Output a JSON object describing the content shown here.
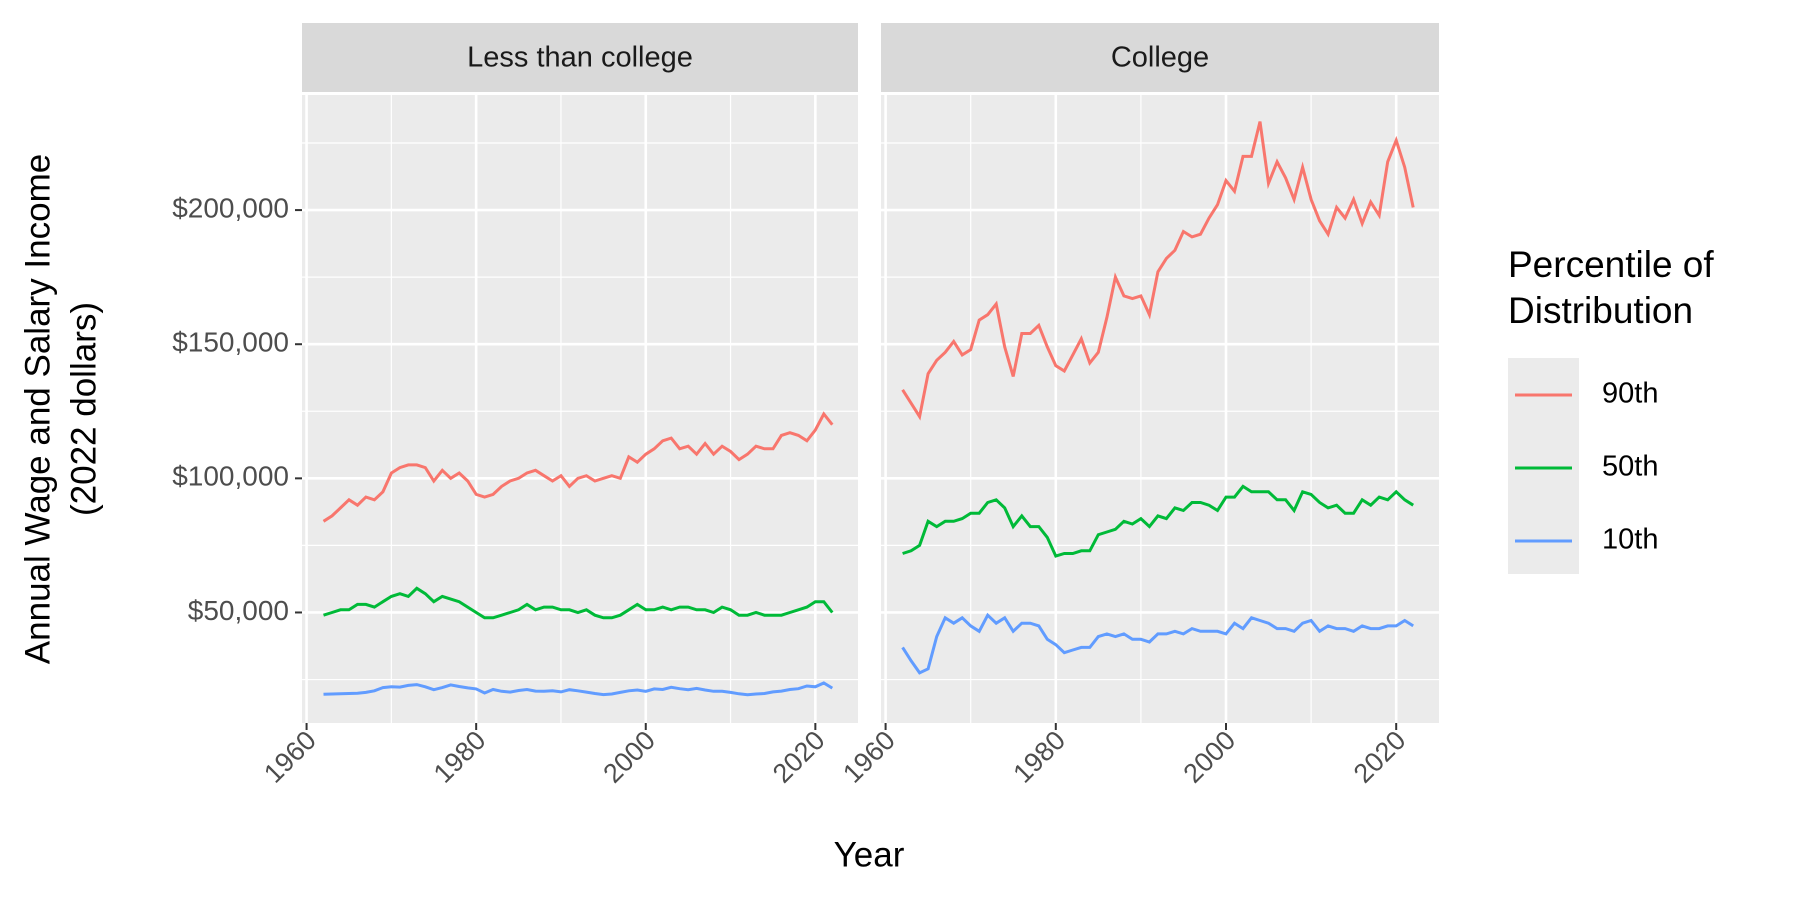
{
  "chart_data": {
    "type": "line",
    "y_title": [
      "Annual Wage and Salary Income",
      "(2022 dollars)"
    ],
    "x_title": "Year",
    "legend_title": [
      "Percentile of",
      "Distribution"
    ],
    "grid": true,
    "xlim": [
      1959.46,
      2025.03
    ],
    "xticks": [
      1960,
      1980,
      2000,
      2020
    ],
    "x_minor_ticks": [
      1970,
      1990,
      2010
    ],
    "ylim": [
      8800,
      242900
    ],
    "yticks": [
      {
        "value": 50000,
        "label": "$50,000"
      },
      {
        "value": 100000,
        "label": "$100,000"
      },
      {
        "value": 150000,
        "label": "$150,000"
      },
      {
        "value": 200000,
        "label": "$200,000"
      }
    ],
    "y_minor_ticks": [
      25000,
      75000,
      125000,
      175000,
      225000
    ],
    "x": [
      1962,
      1963,
      1964,
      1965,
      1966,
      1967,
      1968,
      1969,
      1970,
      1971,
      1972,
      1973,
      1974,
      1975,
      1976,
      1977,
      1978,
      1979,
      1980,
      1981,
      1982,
      1983,
      1984,
      1985,
      1986,
      1987,
      1988,
      1989,
      1990,
      1991,
      1992,
      1993,
      1994,
      1995,
      1996,
      1997,
      1998,
      1999,
      2000,
      2001,
      2002,
      2003,
      2004,
      2005,
      2006,
      2007,
      2008,
      2009,
      2010,
      2011,
      2012,
      2013,
      2014,
      2015,
      2016,
      2017,
      2018,
      2019,
      2020,
      2021,
      2022
    ],
    "facets": [
      {
        "title": "Less than college",
        "series": [
          {
            "name": "90th",
            "color": "#F8766D",
            "values": [
              84000,
              86000,
              89000,
              92000,
              90000,
              93000,
              92000,
              95000,
              102000,
              104000,
              105000,
              105000,
              104000,
              99000,
              103000,
              100000,
              102000,
              99000,
              94000,
              93000,
              94000,
              97000,
              99000,
              100000,
              102000,
              103000,
              101000,
              99000,
              101000,
              97000,
              100000,
              101000,
              99000,
              100000,
              101000,
              100000,
              108000,
              106000,
              109000,
              111000,
              114000,
              115000,
              111000,
              112000,
              109000,
              113000,
              109000,
              112000,
              110000,
              107000,
              109000,
              112000,
              111000,
              111000,
              116000,
              117000,
              116000,
              114000,
              118000,
              124000,
              120000
            ]
          },
          {
            "name": "50th",
            "color": "#00BA38",
            "values": [
              49000,
              50000,
              51000,
              51000,
              53000,
              53000,
              52000,
              54000,
              56000,
              57000,
              56000,
              59000,
              57000,
              54000,
              56000,
              55000,
              54000,
              52000,
              50000,
              48000,
              48000,
              49000,
              50000,
              51000,
              53000,
              51000,
              52000,
              52000,
              51000,
              51000,
              50000,
              51000,
              49000,
              48000,
              48000,
              49000,
              51000,
              53000,
              51000,
              51000,
              52000,
              51000,
              52000,
              52000,
              51000,
              51000,
              50000,
              52000,
              51000,
              49000,
              49000,
              50000,
              49000,
              49000,
              49000,
              50000,
              51000,
              52000,
              54000,
              54000,
              50000
            ]
          },
          {
            "name": "10th",
            "color": "#619CFF",
            "values": [
              19500,
              19600,
              19700,
              19800,
              19900,
              20200,
              20800,
              22000,
              22300,
              22200,
              22800,
              23100,
              22300,
              21200,
              22000,
              23000,
              22400,
              21900,
              21500,
              20000,
              21300,
              20600,
              20300,
              20900,
              21300,
              20700,
              20600,
              20800,
              20400,
              21200,
              20800,
              20300,
              19800,
              19400,
              19600,
              20200,
              20800,
              21100,
              20600,
              21500,
              21300,
              22100,
              21600,
              21200,
              21700,
              21100,
              20600,
              20600,
              20200,
              19700,
              19300,
              19600,
              19800,
              20400,
              20700,
              21300,
              21600,
              22600,
              22300,
              23700,
              21800
            ]
          }
        ]
      },
      {
        "title": "College",
        "series": [
          {
            "name": "90th",
            "color": "#F8766D",
            "values": [
              133000,
              128000,
              123000,
              139000,
              144000,
              147000,
              151000,
              146000,
              148000,
              159000,
              161000,
              165000,
              149000,
              138000,
              154000,
              154000,
              157000,
              149000,
              142000,
              140000,
              146000,
              152000,
              143000,
              147000,
              160000,
              175000,
              168000,
              167000,
              168000,
              161000,
              177000,
              182000,
              185000,
              192000,
              190000,
              191000,
              197000,
              202000,
              211000,
              207000,
              220000,
              220000,
              233000,
              210000,
              218000,
              212000,
              204000,
              216000,
              204000,
              196000,
              191000,
              201000,
              197000,
              204000,
              195000,
              203000,
              198000,
              218000,
              226000,
              216000,
              201000
            ]
          },
          {
            "name": "50th",
            "color": "#00BA38",
            "values": [
              72000,
              73000,
              75000,
              84000,
              82000,
              84000,
              84000,
              85000,
              87000,
              87000,
              91000,
              92000,
              89000,
              82000,
              86000,
              82000,
              82000,
              78000,
              71000,
              72000,
              72000,
              73000,
              73000,
              79000,
              80000,
              81000,
              84000,
              83000,
              85000,
              82000,
              86000,
              85000,
              89000,
              88000,
              91000,
              91000,
              90000,
              88000,
              93000,
              93000,
              97000,
              95000,
              95000,
              95000,
              92000,
              92000,
              88000,
              95000,
              94000,
              91000,
              89000,
              90000,
              87000,
              87000,
              92000,
              90000,
              93000,
              92000,
              95000,
              92000,
              90000
            ]
          },
          {
            "name": "10th",
            "color": "#619CFF",
            "values": [
              37000,
              32000,
              27500,
              29000,
              41000,
              48000,
              46000,
              48000,
              45000,
              43000,
              49000,
              46000,
              48000,
              43000,
              46000,
              46000,
              45000,
              40000,
              38000,
              35000,
              36000,
              37000,
              37000,
              41000,
              42000,
              41000,
              42000,
              40000,
              40000,
              39000,
              42000,
              42000,
              43000,
              42000,
              44000,
              43000,
              43000,
              43000,
              42000,
              46000,
              44000,
              48000,
              47000,
              46000,
              44000,
              44000,
              43000,
              46000,
              47000,
              43000,
              45000,
              44000,
              44000,
              43000,
              45000,
              44000,
              44000,
              45000,
              45000,
              47000,
              45000
            ]
          }
        ]
      }
    ]
  }
}
